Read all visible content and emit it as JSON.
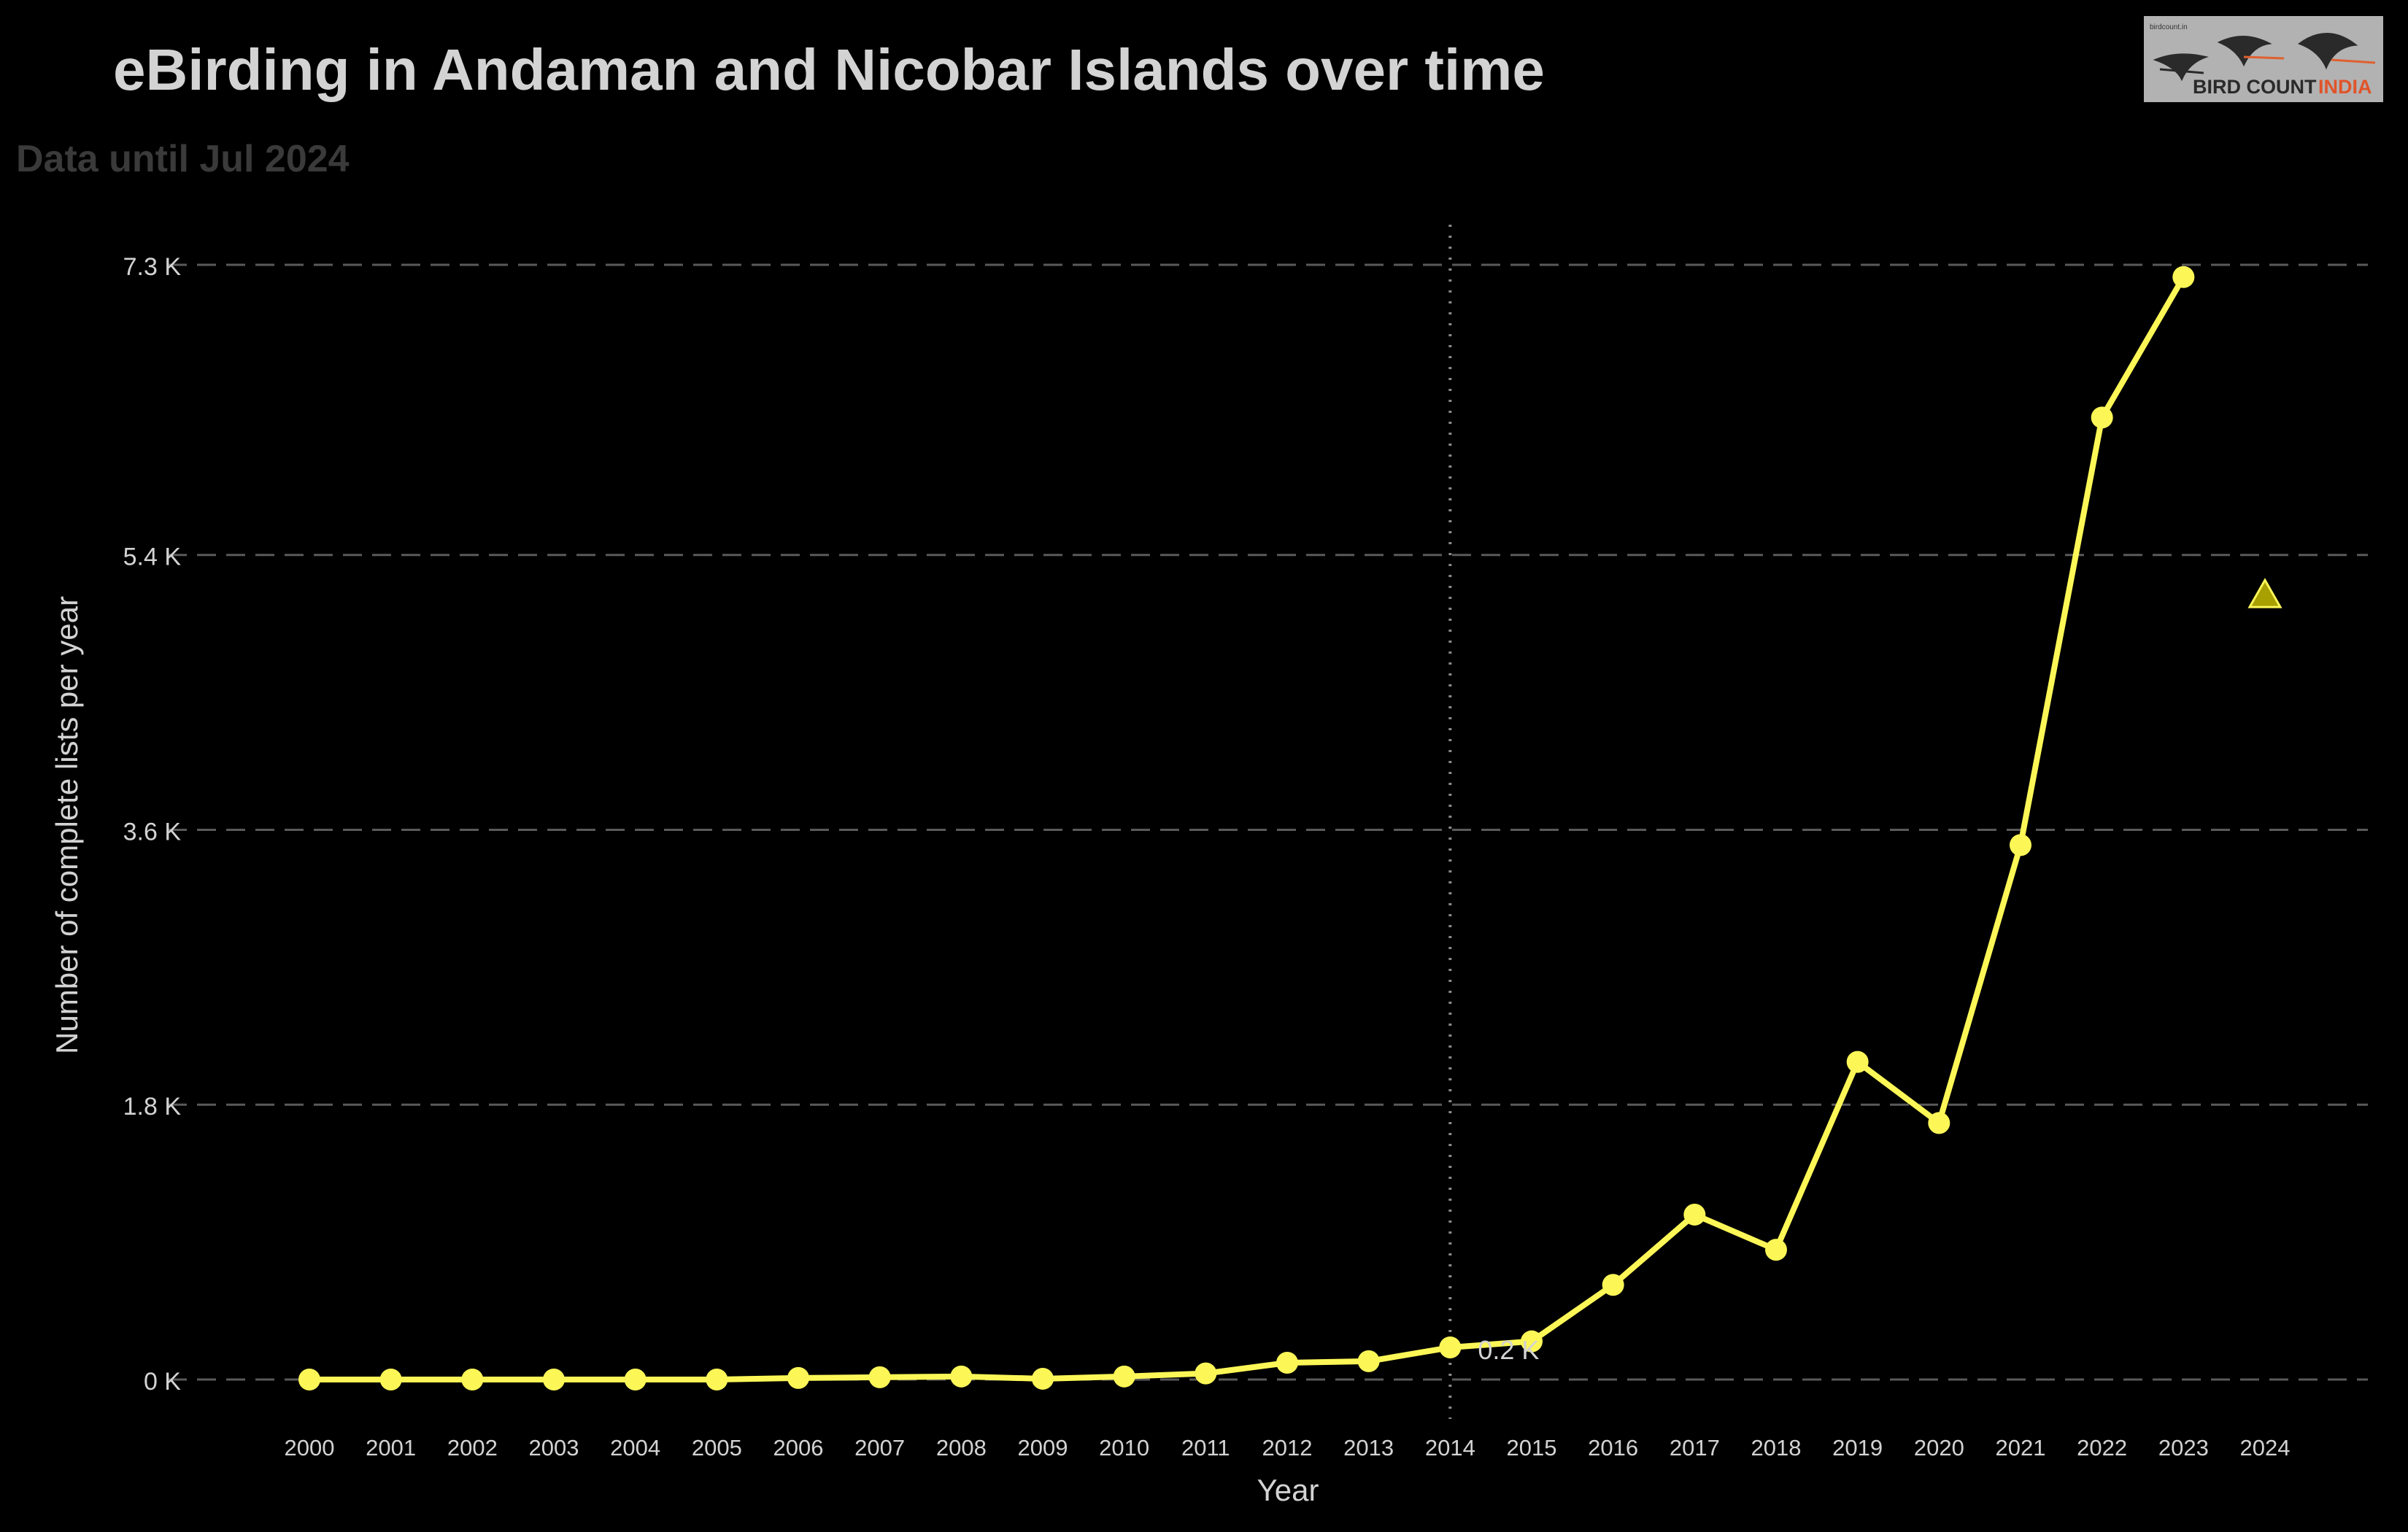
{
  "chart_data": {
    "type": "line",
    "title": "eBirding in Andaman and Nicobar Islands over time",
    "subtitle": "Data until Jul 2024",
    "xlabel": "Year",
    "ylabel": "Number of complete lists per year",
    "x": [
      2000,
      2001,
      2002,
      2003,
      2004,
      2005,
      2006,
      2007,
      2008,
      2009,
      2010,
      2011,
      2012,
      2013,
      2014,
      2015,
      2016,
      2017,
      2018,
      2019,
      2020,
      2021,
      2022,
      2023,
      2024
    ],
    "series": [
      {
        "values": [
          0,
          0,
          0,
          0,
          0,
          0,
          10,
          15,
          20,
          5,
          20,
          40,
          110,
          120,
          210,
          250,
          620,
          1080,
          850,
          2080,
          1680,
          3500,
          6300,
          7220,
          null
        ]
      }
    ],
    "projection": {
      "x": 2024,
      "value": 5140
    },
    "reference_line": {
      "x": 2014,
      "label": "0.2 K"
    },
    "xticks": [
      "2000",
      "2001",
      "2002",
      "2003",
      "2004",
      "2005",
      "2006",
      "2007",
      "2008",
      "2009",
      "2010",
      "2011",
      "2012",
      "2013",
      "2014",
      "2015",
      "2016",
      "2017",
      "2018",
      "2019",
      "2020",
      "2021",
      "2022",
      "2023",
      "2024"
    ],
    "yticks": [
      {
        "value": 0,
        "label": "0 K"
      },
      {
        "value": 1800,
        "label": "1.8 K"
      },
      {
        "value": 3600,
        "label": "3.6 K"
      },
      {
        "value": 5400,
        "label": "5.4 K"
      },
      {
        "value": 7300,
        "label": "7.3 K"
      }
    ],
    "ylim": [
      0,
      7300
    ],
    "xlim": [
      2000,
      2024
    ],
    "grid": "horizontal-dashed",
    "legend": "none",
    "colors": {
      "background": "#000000",
      "line": "#FCF757",
      "projection": "#A8A000",
      "text": "#D3D3D3",
      "subtitle": "#3A3A3A",
      "grid": "#5A5A5A"
    }
  },
  "logo": {
    "text_main": "BIRD COUNT",
    "text_accent": "INDIA",
    "text_small": "birdcount.in",
    "icon": "flying-birds-logo-icon"
  }
}
